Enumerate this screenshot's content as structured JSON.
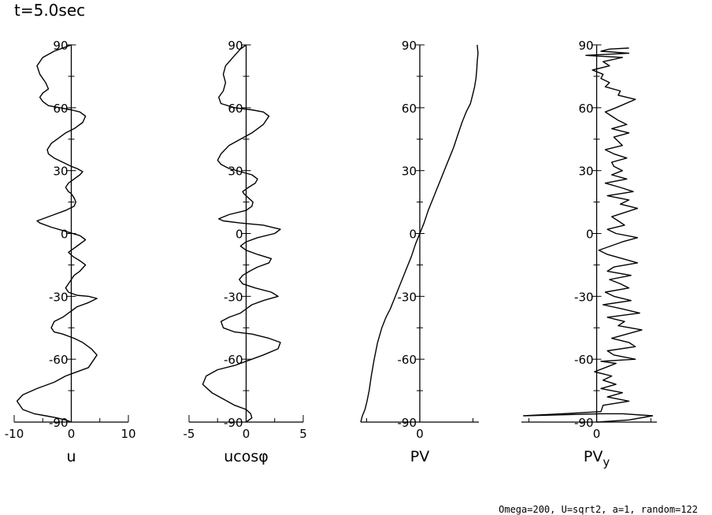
{
  "header": {
    "time_label": "t=5.0sec"
  },
  "footer": {
    "params": "Omega=200, U=sqrt2, a=1, random=122"
  },
  "chart_data": [
    {
      "type": "line",
      "xlabel": "u",
      "xlim": [
        -10,
        10
      ],
      "xticks": [
        -10,
        0,
        10
      ],
      "xtick_labels": [
        "-10",
        "0",
        "10"
      ],
      "ylim": [
        -90,
        90
      ],
      "yticks": [
        -90,
        -60,
        -30,
        0,
        30,
        60,
        90
      ],
      "ytick_labels": [
        "-90",
        "-60",
        "-30",
        "0",
        "30",
        "60",
        "90"
      ],
      "x": [
        0,
        -1,
        -2.5,
        -4.5,
        -6.5,
        -8.5,
        -9.5,
        -8.5,
        -6,
        -3,
        -1,
        0,
        3,
        4.5,
        3.5,
        2,
        0.5,
        -1.5,
        -3,
        -3.5,
        -3,
        -1.5,
        -0.5,
        0,
        1,
        3,
        4.5,
        3,
        1,
        -0.5,
        -1,
        -0.5,
        0,
        0.5,
        1.5,
        2.5,
        1.5,
        0.3,
        -0.5,
        0,
        1,
        2.5,
        1.5,
        -1,
        -3.5,
        -5.5,
        -6,
        -5,
        -3,
        -1,
        0.5,
        0.8,
        0.5,
        0,
        -0.5,
        -1,
        -0.5,
        0.5,
        1.5,
        2,
        1,
        0,
        -1.5,
        -3,
        -4,
        -4.2,
        -3.5,
        -2.5,
        -1,
        0.5,
        2,
        2.5,
        1.5,
        0,
        -2,
        -4,
        -5,
        -5.5,
        -5,
        -4,
        -4.5,
        -5.5,
        -6,
        -5,
        -3,
        -1,
        0
      ],
      "y": [
        -90,
        -89,
        -88,
        -87,
        -86,
        -84,
        -80,
        -77,
        -74,
        -71,
        -68,
        -67,
        -64,
        -58,
        -55,
        -52,
        -50,
        -48,
        -47,
        -45,
        -42,
        -40,
        -38,
        -37,
        -35,
        -33,
        -31,
        -30,
        -29.5,
        -28,
        -26,
        -24,
        -22,
        -20,
        -18,
        -15,
        -13,
        -11,
        -9,
        -8,
        -6,
        -3,
        -1,
        1,
        3,
        5,
        6,
        7,
        9,
        11,
        13,
        15,
        17,
        19,
        20,
        22,
        24,
        26,
        28,
        29.5,
        31,
        32,
        34,
        36,
        38,
        40,
        43,
        45,
        48,
        50,
        53,
        56,
        58,
        59,
        60,
        61,
        63,
        65,
        67,
        69,
        72,
        76,
        80,
        84,
        87,
        89,
        90
      ]
    },
    {
      "type": "line",
      "xlabel": "ucosφ",
      "xlim": [
        -5,
        5
      ],
      "xticks": [
        -5,
        0,
        5
      ],
      "xtick_labels": [
        "-5",
        "0",
        "5"
      ],
      "ylim": [
        -90,
        90
      ],
      "yticks": [
        -90,
        -60,
        -30,
        0,
        30,
        60,
        90
      ],
      "ytick_labels": [
        "-90",
        "-60",
        "-30",
        "0",
        "30",
        "60",
        "90"
      ],
      "x": [
        0,
        0.5,
        0.4,
        0,
        -1,
        -2,
        -3,
        -3.8,
        -3.5,
        -2.5,
        -1,
        0,
        1.5,
        2.8,
        3,
        2,
        0.5,
        -1,
        -2,
        -2.2,
        -1.5,
        -0.5,
        0,
        0.5,
        1.5,
        2.8,
        2.2,
        0.8,
        -0.3,
        -0.6,
        -0.3,
        0.3,
        1,
        2,
        2.2,
        1,
        0,
        -0.5,
        0,
        1,
        2.5,
        3,
        1.5,
        -0.5,
        -2,
        -2.4,
        -1.5,
        0,
        0.5,
        0.6,
        0.2,
        -0.2,
        -0.3,
        0.2,
        0.8,
        1,
        0.5,
        -0.5,
        -1.5,
        -2.2,
        -2.5,
        -2.2,
        -1.5,
        -0.5,
        0.5,
        1.5,
        2,
        1.5,
        0.5,
        -1,
        -2.2,
        -2.4,
        -2,
        -1.8,
        -2,
        -1.8,
        -1,
        -0.5,
        0
      ],
      "y": [
        -90,
        -88,
        -86,
        -84,
        -82,
        -79,
        -76,
        -72,
        -68,
        -65,
        -63,
        -61,
        -58,
        -55,
        -52,
        -50,
        -48,
        -47,
        -45,
        -42,
        -40,
        -38,
        -36,
        -34,
        -32,
        -30,
        -28,
        -26,
        -24,
        -22,
        -20,
        -18,
        -16,
        -14,
        -12,
        -10,
        -8,
        -6,
        -4,
        -2,
        0,
        2,
        4,
        5,
        6,
        7,
        9,
        11,
        13,
        15,
        17,
        19,
        20,
        22,
        24,
        26,
        28,
        29.5,
        31,
        33,
        35,
        38,
        42,
        45,
        48,
        52,
        56,
        58,
        59,
        60,
        62,
        65,
        68,
        72,
        76,
        80,
        85,
        88,
        90
      ]
    },
    {
      "type": "line",
      "xlabel": "PV",
      "xlim": [
        -1.4,
        1.4
      ],
      "xticks": [
        0
      ],
      "xtick_labels": [
        "0"
      ],
      "ylim": [
        -90,
        90
      ],
      "yticks": [
        -90,
        -60,
        -30,
        0,
        30,
        60,
        90
      ],
      "ytick_labels": [
        "-90",
        "-60",
        "-30",
        "0",
        "30",
        "60",
        "90"
      ],
      "x": [
        -1.4,
        -1.36,
        -1.3,
        -1.25,
        -1.2,
        -1.15,
        -1.08,
        -1,
        -0.9,
        -0.8,
        -0.7,
        -0.6,
        -0.5,
        -0.4,
        -0.3,
        -0.2,
        -0.1,
        0,
        0.1,
        0.2,
        0.3,
        0.4,
        0.5,
        0.6,
        0.7,
        0.8,
        0.9,
        1,
        1.1,
        1.2,
        1.25,
        1.3,
        1.33,
        1.35,
        1.36,
        1.38,
        1.36
      ],
      "y": [
        -90,
        -87,
        -84,
        -80,
        -75,
        -68,
        -60,
        -52,
        -45,
        -40,
        -36,
        -31,
        -26,
        -21,
        -16,
        -11,
        -5,
        0,
        5,
        11,
        16,
        21,
        26,
        31,
        36,
        41,
        47,
        53,
        58,
        62,
        66,
        70,
        74,
        78,
        82,
        86,
        90
      ]
    },
    {
      "type": "line",
      "xlabel": "PVy",
      "xlim": [
        -3.5,
        2.8
      ],
      "xticks": [
        0
      ],
      "xtick_labels": [
        "0"
      ],
      "ylim": [
        -90,
        90
      ],
      "yticks": [
        -90,
        -60,
        -30,
        0,
        30,
        60,
        90
      ],
      "ytick_labels": [
        "-90",
        "-60",
        "-30",
        "0",
        "30",
        "60",
        "90"
      ],
      "x": [
        0,
        1.5,
        2.6,
        1.2,
        0.2,
        -3.4,
        -1.6,
        0.2,
        0.3,
        1.5,
        0.5,
        1.2,
        0.2,
        0.9,
        0.3,
        0.7,
        -0.1,
        0.4,
        0.9,
        0.2,
        1.8,
        0.8,
        0.5,
        1.8,
        1.5,
        0.7,
        2.1,
        1,
        1.3,
        0.5,
        2,
        1.2,
        0.3,
        1.6,
        0.8,
        0.4,
        1.5,
        1.1,
        0.6,
        1.6,
        0.5,
        0.8,
        1.9,
        0.5,
        0.1,
        1.2,
        1.9,
        0.9,
        0.5,
        1.3,
        1,
        0.7,
        1.9,
        1.1,
        1.5,
        0.5,
        1.7,
        1.1,
        0.4,
        1.4,
        0.7,
        1.2,
        0.8,
        0.7,
        1.4,
        0.8,
        0.4,
        1.2,
        0.8,
        1.5,
        0.7,
        1.4,
        1,
        0.7,
        0.4,
        0.9,
        1.8,
        1,
        1.1,
        0.4,
        0.6,
        0.2,
        0.3,
        -0.2,
        0.6,
        0.3,
        1.2,
        -0.5,
        1.5,
        0.2,
        0.6,
        1.5
      ],
      "y": [
        -90,
        -89,
        -87,
        -86,
        -86,
        -87,
        -86,
        -85,
        -82,
        -80,
        -78,
        -76,
        -74,
        -72,
        -70,
        -68,
        -66,
        -64,
        -62,
        -61,
        -60,
        -58,
        -56,
        -54,
        -52,
        -50,
        -46,
        -44,
        -42,
        -40,
        -38,
        -36,
        -34,
        -32,
        -30,
        -28,
        -26,
        -24,
        -22,
        -20,
        -18,
        -16,
        -14,
        -10,
        -8,
        -4,
        -2,
        0,
        2,
        4,
        6,
        8,
        12,
        14,
        16,
        18,
        20,
        22,
        24,
        26,
        28,
        30,
        32,
        34,
        36,
        38,
        40,
        42,
        46,
        48,
        50,
        52,
        54,
        56,
        58,
        60,
        64,
        66,
        68,
        70,
        72,
        74,
        76,
        78,
        80,
        82,
        84,
        85,
        86,
        87,
        88,
        88.5
      ]
    }
  ]
}
